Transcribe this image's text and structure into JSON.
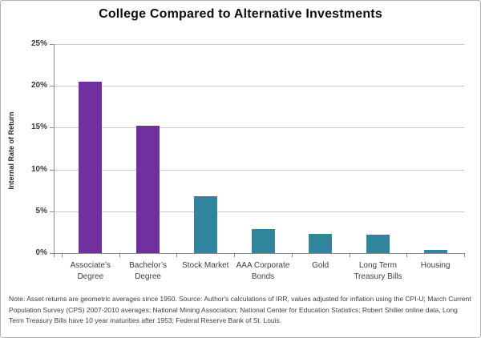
{
  "chart_data": {
    "type": "bar",
    "title": "College Compared to Alternative Investments",
    "ylabel": "Internal Rate of Return",
    "xlabel": "",
    "categories": [
      "Associate’s Degree",
      "Bachelor’s Degree",
      "Stock Market",
      "AAA Corporate Bonds",
      "Gold",
      "Long Term Treasury Bills",
      "Housing"
    ],
    "values": [
      20.5,
      15.2,
      6.8,
      2.9,
      2.3,
      2.2,
      0.4
    ],
    "unit": "%",
    "ylim": [
      0,
      25
    ],
    "ytick_interval": 5,
    "ytick_labels": [
      "0%",
      "5%",
      "10%",
      "15%",
      "20%",
      "25%"
    ],
    "grid": true,
    "legend": "none",
    "bar_colors": [
      "#7030A0",
      "#7030A0",
      "#31859C",
      "#31859C",
      "#31859C",
      "#31859C",
      "#31859C"
    ],
    "accent_colors": {
      "purple": "#7030A0",
      "teal": "#31859C",
      "gridline": "#C9C9C9",
      "axis": "#8C8C8C",
      "label_text": "#3F3F3F"
    }
  },
  "note": {
    "text": "Note: Asset returns are geometric averages since 1950. Source: Author's calculations of IRR, values adjusted for inflation using the CPI-U; March Current Population Survey (CPS) 2007-2010 averages; National Mining Association; National Center for Education Statistics; Robert Shiller online data, Long Term Treasury Bills have 10 year maturities after 1953; Federal Reserve Bank of St. Louis."
  }
}
